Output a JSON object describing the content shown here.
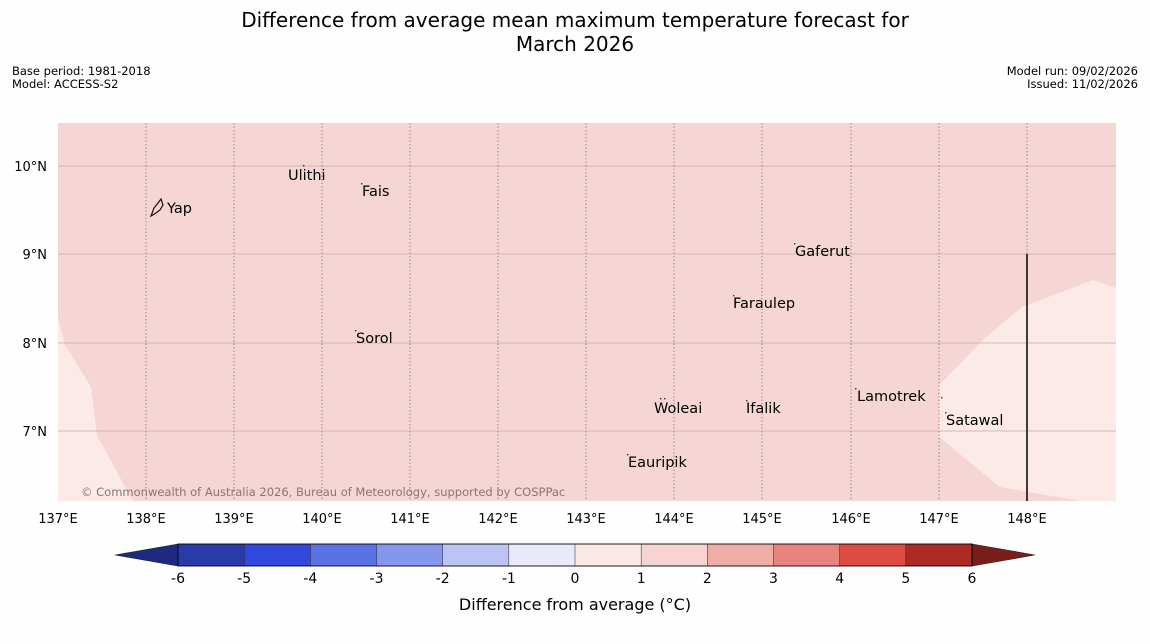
{
  "title": {
    "line1": "Difference from average mean maximum temperature forecast for",
    "line2": "March 2026"
  },
  "info": {
    "base_period": "Base period: 1981-2018",
    "model": "Model: ACCESS-S2",
    "model_run": "Model run: 09/02/2026",
    "issued": "Issued: 11/02/2026"
  },
  "map": {
    "lat_labels": [
      "10°N",
      "9°N",
      "8°N",
      "7°N"
    ],
    "lon_labels": [
      "137°E",
      "138°E",
      "139°E",
      "140°E",
      "141°E",
      "142°E",
      "143°E",
      "144°E",
      "145°E",
      "146°E",
      "147°E",
      "148°E"
    ],
    "places": [
      "Ulithi",
      "Fais",
      "Yap",
      "Gaferut",
      "Faraulep",
      "Sorol",
      "Lamotrek",
      "Woleai",
      "Ifalik",
      "Satawal",
      "Eauripik"
    ],
    "copyright": "© Commonwealth of Australia 2026, Bureau of Meteorology, supported by COSPPac"
  },
  "colorbar": {
    "tick_labels": [
      "-6",
      "-5",
      "-4",
      "-3",
      "-2",
      "-1",
      "0",
      "1",
      "2",
      "3",
      "4",
      "5",
      "6"
    ],
    "colors": [
      "#2a3aa8",
      "#3148dc",
      "#5b71e6",
      "#8596ec",
      "#bcc4f4",
      "#e8eafa",
      "#fbe9e7",
      "#f5d4d2",
      "#efada8",
      "#e9837d",
      "#de4b40",
      "#ae2a24"
    ],
    "low_extend_color": "#1d2a80",
    "high_extend_color": "#7a1e1a",
    "label": "Difference from average (°C)"
  },
  "colors": {
    "band_1_2": "#f5d6d4",
    "band_0_1": "#fbeae8"
  }
}
